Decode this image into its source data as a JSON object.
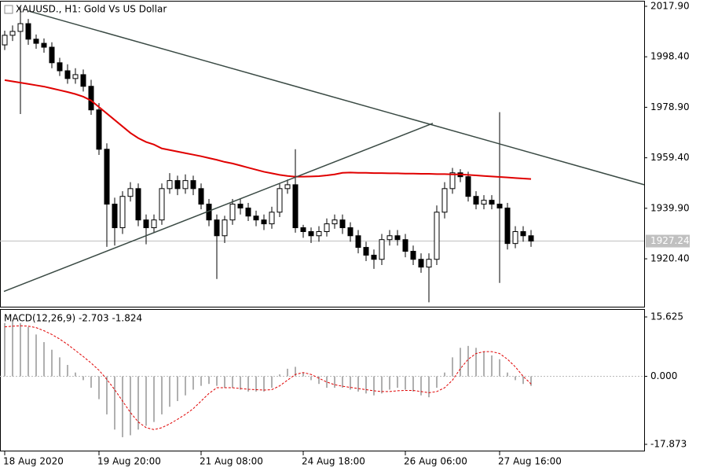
{
  "chart_data": {
    "type": "candlestick",
    "title": "XAUUSD., H1:  Gold Vs US Dollar",
    "categories": [
      "18 Aug 2020",
      null,
      null,
      null,
      null,
      null,
      null,
      null,
      null,
      null,
      null,
      null,
      "19 Aug 20:00",
      null,
      null,
      null,
      null,
      null,
      null,
      null,
      null,
      null,
      null,
      null,
      null,
      "21 Aug 08:00",
      null,
      null,
      null,
      null,
      null,
      null,
      null,
      null,
      null,
      null,
      null,
      null,
      "24 Aug 18:00",
      null,
      null,
      null,
      null,
      null,
      null,
      null,
      null,
      null,
      null,
      null,
      null,
      "26 Aug 06:00",
      null,
      null,
      null,
      null,
      null,
      null,
      null,
      null,
      null,
      null,
      null,
      "27 Aug 16:00",
      null,
      null,
      null,
      null
    ],
    "open": [
      2003.0,
      2006.7,
      2008.2,
      2011.2,
      2005.2,
      2003.6,
      2002.1,
      1996.1,
      1993.0,
      1990.0,
      1991.5,
      1987.0,
      1977.9,
      1962.7,
      1941.5,
      1932.4,
      1944.5,
      1947.5,
      1935.4,
      1932.4,
      1935.4,
      1947.5,
      1950.6,
      1947.5,
      1950.6,
      1947.5,
      1941.5,
      1935.4,
      1929.3,
      1935.4,
      1941.5,
      1940.0,
      1936.9,
      1935.4,
      1933.9,
      1938.4,
      1947.5,
      1949.0,
      1932.4,
      1930.9,
      1929.3,
      1930.9,
      1933.9,
      1935.4,
      1932.4,
      1929.3,
      1924.8,
      1921.8,
      1920.2,
      1927.8,
      1929.3,
      1927.8,
      1923.3,
      1920.2,
      1917.2,
      1920.2,
      1938.4,
      1947.5,
      1953.6,
      1952.1,
      1944.5,
      1941.5,
      1943.0,
      1941.5,
      1940.0,
      1926.3,
      1930.9,
      1929.3
    ],
    "high": [
      2008.5,
      2010.5,
      2017.5,
      2013.0,
      2007.0,
      2005.5,
      2004.0,
      1998.0,
      1995.5,
      1994.0,
      1993.5,
      1989.5,
      1980.5,
      1965.0,
      1944.0,
      1946.5,
      1950.0,
      1949.5,
      1937.5,
      1937.5,
      1949.5,
      1953.5,
      1952.5,
      1953.0,
      1952.5,
      1949.5,
      1943.5,
      1937.5,
      1937.0,
      1943.5,
      1943.5,
      1942.0,
      1939.0,
      1937.5,
      1940.5,
      1949.5,
      1951.0,
      1962.7,
      1933.5,
      1932.5,
      1933.0,
      1936.0,
      1937.5,
      1937.5,
      1934.5,
      1931.5,
      1927.0,
      1924.0,
      1930.0,
      1931.5,
      1931.5,
      1930.0,
      1925.5,
      1922.5,
      1922.5,
      1941.0,
      1950.0,
      1955.5,
      1955.0,
      1954.0,
      1946.5,
      1945.0,
      1945.0,
      1977.0,
      1942.0,
      1933.0,
      1933.0,
      1931.5
    ],
    "low": [
      2001.0,
      2004.5,
      1976.3,
      2003.0,
      2001.5,
      2000.0,
      1994.0,
      1991.0,
      1988.0,
      1988.0,
      1985.0,
      1976.0,
      1960.5,
      1925.0,
      1925.5,
      1930.0,
      1942.5,
      1933.0,
      1926.0,
      1930.5,
      1933.5,
      1945.5,
      1945.0,
      1945.5,
      1945.0,
      1939.5,
      1933.0,
      1912.6,
      1926.5,
      1933.5,
      1937.5,
      1935.0,
      1933.0,
      1931.5,
      1932.0,
      1936.5,
      1945.5,
      1930.5,
      1928.5,
      1926.5,
      1927.0,
      1929.0,
      1932.0,
      1930.0,
      1927.0,
      1922.5,
      1919.5,
      1916.5,
      1918.0,
      1925.5,
      1925.5,
      1921.0,
      1918.0,
      1915.0,
      1903.6,
      1918.0,
      1936.0,
      1945.5,
      1950.0,
      1942.5,
      1939.5,
      1939.5,
      1939.5,
      1911.1,
      1924.0,
      1924.5,
      1927.0,
      1925.0
    ],
    "close": [
      2006.7,
      2008.2,
      2011.2,
      2005.2,
      2003.6,
      2002.1,
      1996.1,
      1993.0,
      1990.0,
      1991.5,
      1987.0,
      1977.9,
      1962.7,
      1941.5,
      1932.4,
      1944.5,
      1947.5,
      1935.4,
      1932.4,
      1935.4,
      1947.5,
      1950.6,
      1947.5,
      1950.6,
      1947.5,
      1941.5,
      1935.4,
      1929.3,
      1935.4,
      1941.5,
      1940.0,
      1936.9,
      1935.4,
      1933.9,
      1938.4,
      1947.5,
      1949.0,
      1932.4,
      1930.9,
      1929.3,
      1930.9,
      1933.9,
      1935.4,
      1932.4,
      1929.3,
      1924.8,
      1921.8,
      1920.2,
      1927.8,
      1929.3,
      1927.8,
      1923.3,
      1920.2,
      1917.2,
      1920.2,
      1938.4,
      1947.5,
      1953.6,
      1952.1,
      1944.5,
      1941.5,
      1943.0,
      1941.5,
      1940.0,
      1926.3,
      1930.9,
      1929.3,
      1927.24
    ],
    "ma": {
      "color": "#e00000",
      "values": [
        1989.4,
        1988.9,
        1988.4,
        1987.9,
        1987.4,
        1986.9,
        1986.2,
        1985.5,
        1984.8,
        1984.0,
        1983.0,
        1981.5,
        1979.0,
        1976.5,
        1974.0,
        1971.5,
        1969.0,
        1967.0,
        1965.5,
        1964.5,
        1963.0,
        1962.4,
        1961.8,
        1961.2,
        1960.6,
        1960.0,
        1959.3,
        1958.6,
        1957.8,
        1957.2,
        1956.4,
        1955.6,
        1954.8,
        1954.0,
        1953.4,
        1952.8,
        1952.4,
        1952.1,
        1952.1,
        1952.2,
        1952.3,
        1952.6,
        1953.0,
        1953.6,
        1953.7,
        1953.6,
        1953.6,
        1953.5,
        1953.5,
        1953.4,
        1953.4,
        1953.3,
        1953.3,
        1953.2,
        1953.2,
        1953.1,
        1953.1,
        1953.0,
        1953.0,
        1952.8,
        1952.6,
        1952.4,
        1952.2,
        1952.0,
        1951.8,
        1951.6,
        1951.4,
        1951.2
      ]
    },
    "trendlines": [
      {
        "color": "#3a4a44",
        "x": [
          3,
          81.4
        ],
        "y": [
          2016.1,
          1949.0
        ]
      },
      {
        "color": "#3a4a44",
        "x": [
          -0.1,
          54.5
        ],
        "y": [
          1907.8,
          1972.7
        ]
      }
    ],
    "ylim": [
      1901.9,
      2019.72
    ],
    "yticks": [
      {
        "value": 2017.9,
        "label": "2017.90"
      },
      {
        "value": 1998.4,
        "label": "1998.40"
      },
      {
        "value": 1978.9,
        "label": "1978.90"
      },
      {
        "value": 1959.4,
        "label": "1959.40"
      },
      {
        "value": 1939.9,
        "label": "1939.90"
      },
      {
        "value": 1920.4,
        "label": "1920.40"
      }
    ],
    "macd": {
      "label": "MACD(12,26,9) -2.703 -1.824",
      "histogram_color": "#b0b0b0",
      "signal_color": "#e00000",
      "histogram": [
        14,
        14.5,
        14,
        13,
        11,
        9,
        7,
        5,
        3,
        1,
        -1,
        -3,
        -6,
        -10,
        -14,
        -16,
        -15.5,
        -14,
        -13,
        -12,
        -10,
        -8,
        -6.5,
        -5,
        -3.5,
        -2.5,
        -2,
        -2.5,
        -3,
        -3,
        -3.5,
        -4,
        -4,
        -4,
        -3,
        0.5,
        2,
        2.5,
        1,
        -1,
        -2,
        -3,
        -3,
        -3,
        -3.5,
        -4,
        -4.5,
        -5,
        -4.5,
        -3.5,
        -3,
        -3.5,
        -4,
        -5,
        -5.5,
        -3,
        1,
        5,
        7.5,
        8,
        7.5,
        6.5,
        5.5,
        4.5,
        1,
        -1,
        -2,
        -2.5
      ],
      "signal": [
        13,
        13.2,
        13.3,
        13.2,
        12.8,
        12,
        11,
        9.8,
        8.4,
        6.8,
        5.2,
        3.5,
        1.6,
        -0.8,
        -3.5,
        -6.5,
        -9.5,
        -12,
        -13.5,
        -14,
        -13.5,
        -12.5,
        -11.3,
        -10,
        -8.5,
        -6.5,
        -4.5,
        -3,
        -3,
        -3,
        -3.2,
        -3.4,
        -3.5,
        -3.6,
        -3.5,
        -2.5,
        -1,
        0.5,
        1,
        0.5,
        -0.5,
        -1.5,
        -2.2,
        -2.6,
        -2.9,
        -3.2,
        -3.5,
        -3.8,
        -4,
        -4,
        -3.8,
        -3.7,
        -3.7,
        -4,
        -4.3,
        -4,
        -3,
        -1,
        2,
        4.5,
        6,
        6.5,
        6.5,
        6,
        4.5,
        2.5,
        0,
        -2
      ],
      "ylim": [
        -19.53,
        17.69
      ],
      "yticks": [
        15.625,
        {
          "value": 0,
          "label": "0.000"
        },
        -17.873
      ]
    }
  }
}
